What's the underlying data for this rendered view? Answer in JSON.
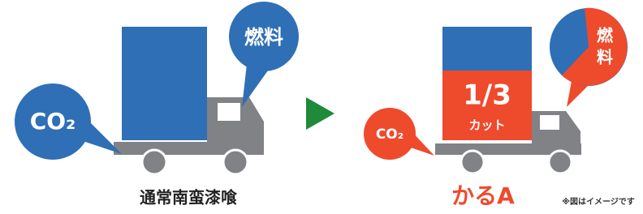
{
  "left": {
    "co2": "CO₂",
    "fuel": "燃料",
    "label": "通常南蛮漆喰"
  },
  "right": {
    "co2": "CO₂",
    "fuel": "燃料",
    "cut_ratio": "1/3",
    "cut": "カット",
    "label": "かるA"
  },
  "note": "※図はイメージです"
}
